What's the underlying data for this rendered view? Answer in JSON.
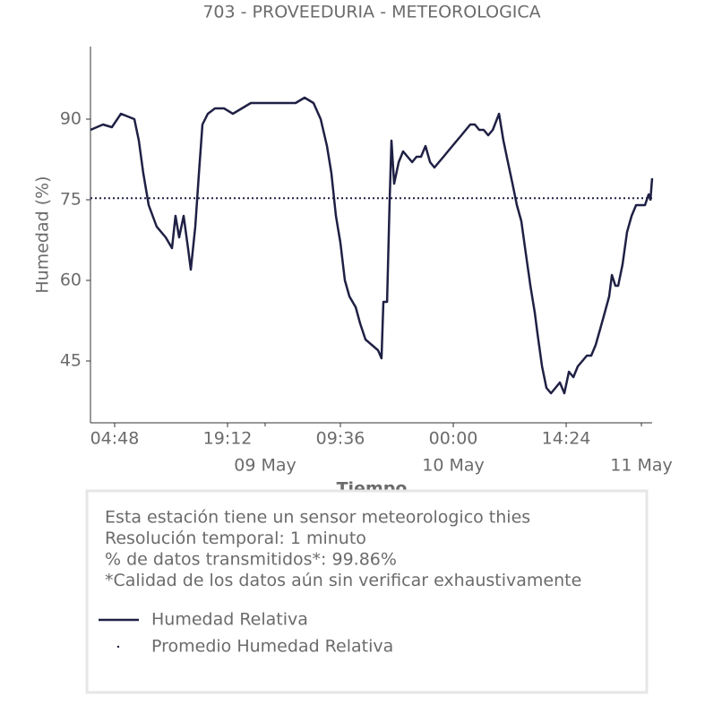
{
  "chart_data": {
    "type": "line",
    "title": "703 - PROVEEDURIA - METEOROLOGICA",
    "x_label": "Tiempo",
    "y_label": "Humedad (%)",
    "x": [
      "08 May 01:43",
      "08 May 03:19",
      "08 May 04:27",
      "08 May 05:36",
      "08 May 07:19",
      "08 May 07:53",
      "08 May 08:27",
      "08 May 09:09",
      "08 May 10:10",
      "08 May 11:19",
      "08 May 12:07",
      "08 May 12:34",
      "08 May 13:02",
      "08 May 13:36",
      "08 May 14:10",
      "08 May 14:31",
      "08 May 15:05",
      "08 May 15:33",
      "08 May 16:00",
      "08 May 16:41",
      "08 May 17:36",
      "08 May 18:45",
      "08 May 19:53",
      "08 May 21:02",
      "08 May 22:10",
      "08 May 23:19",
      "09 May 00:27",
      "09 May 01:36",
      "09 May 02:45",
      "09 May 03:53",
      "09 May 05:02",
      "09 May 06:10",
      "09 May 07:05",
      "09 May 07:53",
      "09 May 08:27",
      "09 May 09:02",
      "09 May 09:36",
      "09 May 10:10",
      "09 May 10:45",
      "09 May 11:33",
      "09 May 12:07",
      "09 May 12:48",
      "09 May 13:36",
      "09 May 14:24",
      "09 May 14:51",
      "09 May 15:05",
      "09 May 15:33",
      "09 May 15:53",
      "09 May 16:07",
      "09 May 16:27",
      "09 May 17:02",
      "09 May 17:36",
      "09 May 18:10",
      "09 May 18:45",
      "09 May 19:19",
      "09 May 19:53",
      "09 May 20:27",
      "09 May 21:02",
      "09 May 21:36",
      "09 May 22:10",
      "09 May 22:45",
      "09 May 23:19",
      "09 May 23:53",
      "10 May 00:27",
      "10 May 01:02",
      "10 May 01:36",
      "10 May 02:10",
      "10 May 02:45",
      "10 May 03:19",
      "10 May 03:53",
      "10 May 04:27",
      "10 May 05:02",
      "10 May 05:50",
      "10 May 06:24",
      "10 May 06:58",
      "10 May 07:33",
      "10 May 08:07",
      "10 May 08:41",
      "10 May 09:15",
      "10 May 09:50",
      "10 May 10:24",
      "10 May 10:45",
      "10 May 11:19",
      "10 May 11:53",
      "10 May 12:28",
      "10 May 13:02",
      "10 May 13:36",
      "10 May 14:10",
      "10 May 14:45",
      "10 May 15:19",
      "10 May 15:53",
      "10 May 16:28",
      "10 May 17:02",
      "10 May 17:36",
      "10 May 18:10",
      "10 May 18:45",
      "10 May 19:19",
      "10 May 19:53",
      "10 May 20:14",
      "10 May 20:41",
      "10 May 21:02",
      "10 May 21:36",
      "10 May 22:10",
      "10 May 22:45",
      "10 May 23:19",
      "10 May 23:53",
      "11 May 00:27",
      "11 May 00:55",
      "11 May 01:09",
      "11 May 01:22"
    ],
    "series": [
      {
        "name": "Humedad Relativa",
        "color": "#1f2044",
        "values": [
          88,
          89,
          88.5,
          91,
          90,
          86,
          80,
          74,
          70,
          68,
          66,
          72,
          68,
          72,
          66,
          62,
          70,
          80,
          89,
          91,
          92,
          92,
          91,
          92,
          93,
          93,
          93,
          93,
          93,
          93,
          94,
          93,
          90,
          85,
          80,
          72,
          67,
          60,
          57,
          55,
          52,
          49,
          48,
          47,
          45.5,
          56,
          56,
          75,
          86,
          78,
          82,
          84,
          83,
          82,
          83,
          83,
          85,
          82,
          81,
          82,
          83,
          84,
          85,
          86,
          87,
          88,
          89,
          89,
          88,
          88,
          87,
          88,
          91,
          86,
          82,
          78,
          74,
          71,
          65,
          59,
          54,
          50,
          44,
          40,
          39,
          40,
          41,
          39,
          43,
          42,
          44,
          45,
          46,
          46,
          48,
          51,
          54,
          57,
          61,
          59,
          59,
          63,
          69,
          72,
          74,
          74,
          74,
          76,
          75,
          79
        ]
      },
      {
        "name": "Promedio Humedad Relativa",
        "color": "#1f2044",
        "style": "dotted",
        "value": 75.3
      }
    ],
    "xlim": [
      "08 May 01:43",
      "11 May 01:22"
    ],
    "xticks": [
      {
        "value": "08 May 04:48",
        "label": "04:48"
      },
      {
        "value": "08 May 19:12",
        "label": "19:12"
      },
      {
        "value": "09 May 09:36",
        "label": "09:36"
      },
      {
        "value": "10 May 00:00",
        "label": "00:00"
      },
      {
        "value": "10 May 14:24",
        "label": "14:24"
      }
    ],
    "xticks_dates": [
      {
        "value": "09 May 00:00",
        "label": "09 May"
      },
      {
        "value": "10 May 00:00",
        "label": "10 May"
      },
      {
        "value": "11 May 00:00",
        "label": "11 May"
      }
    ],
    "ylim": [
      33.5,
      103.5
    ],
    "yticks": [
      45,
      60,
      75,
      90
    ],
    "annotations": [
      "Esta estación tiene un sensor meteorologico thies",
      "Resolución temporal: 1 minuto",
      "% de datos transmitidos*: 99.86%",
      "*Calidad de los datos aún sin verificar exhaustivamente"
    ],
    "legend": "bottom"
  }
}
